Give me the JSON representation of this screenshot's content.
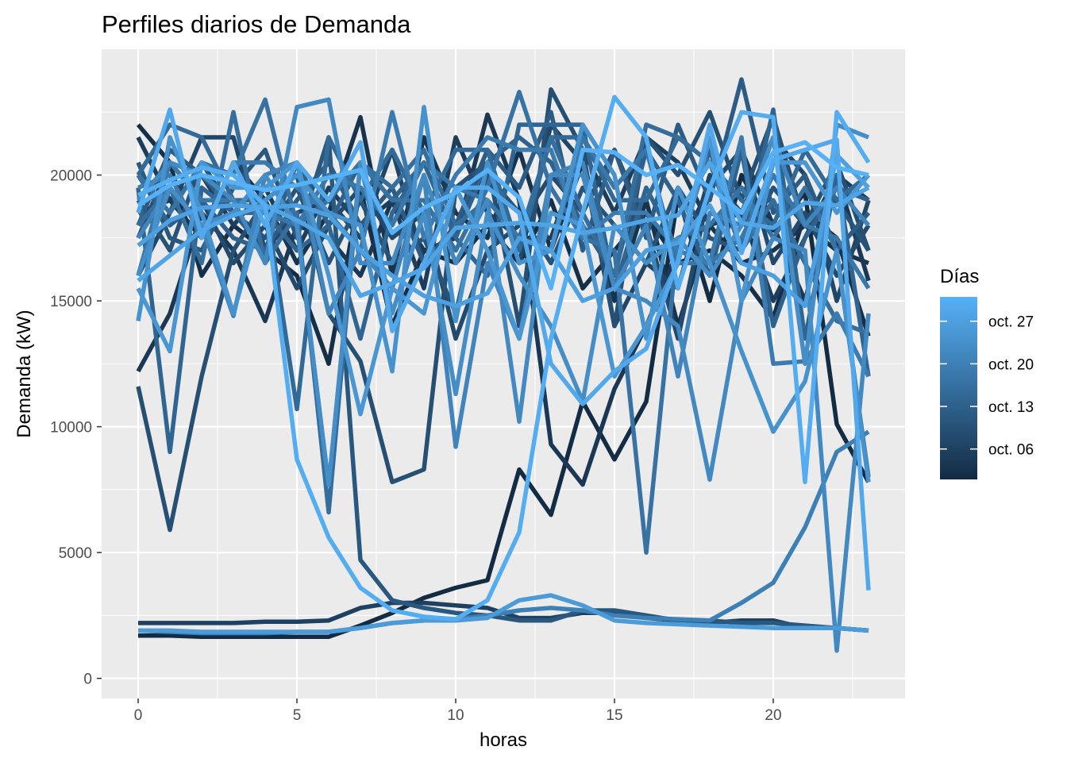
{
  "chart_data": {
    "type": "line",
    "title": "Perfiles diarios de Demanda",
    "xlabel": "horas",
    "ylabel": "Demanda (kW)",
    "xlim": [
      -1.15,
      24.15
    ],
    "ylim": [
      -800,
      25000
    ],
    "x_ticks": [
      0,
      5,
      10,
      15,
      20
    ],
    "x_tick_labels": [
      "0",
      "5",
      "10",
      "15",
      "20"
    ],
    "y_ticks": [
      0,
      5000,
      10000,
      15000,
      20000
    ],
    "y_tick_labels": [
      "0",
      "5000",
      "10000",
      "15000",
      "20000"
    ],
    "grid": true,
    "legend": {
      "title": "Días",
      "position": "right",
      "labels": [
        "oct. 27",
        "oct. 20",
        "oct. 13",
        "oct. 06"
      ],
      "label_day_index": [
        26,
        19,
        12,
        5
      ],
      "color_low": "#132b43",
      "color_high": "#56b1f7"
    },
    "x": [
      0,
      1,
      2,
      3,
      4,
      5,
      6,
      7,
      8,
      9,
      10,
      11,
      12,
      13,
      14,
      15,
      16,
      17,
      18,
      19,
      20,
      21,
      22,
      23
    ],
    "series": [
      {
        "day_index": 0,
        "values": [
          1700,
          1700,
          1650,
          1650,
          1650,
          1650,
          1650,
          2100,
          2600,
          3200,
          3600,
          3900,
          8300,
          6500,
          11000,
          8700,
          11000,
          19200,
          15000,
          20000,
          17800,
          19300,
          10100,
          7800
        ]
      },
      {
        "day_index": 1,
        "values": [
          22000,
          20500,
          16000,
          18000,
          17000,
          16000,
          12500,
          19500,
          14000,
          17000,
          16500,
          18000,
          16500,
          19000,
          15500,
          17000,
          18500,
          16500,
          17000,
          16000,
          14300,
          18500,
          17500,
          13600
        ]
      },
      {
        "day_index": 2,
        "values": [
          18500,
          19000,
          17500,
          20500,
          19000,
          16500,
          18500,
          22300,
          16000,
          21500,
          18500,
          17500,
          21000,
          17000,
          20500,
          15000,
          19000,
          14000,
          18000,
          16500,
          17000,
          18000,
          17000,
          16500
        ]
      },
      {
        "day_index": 3,
        "values": [
          12200,
          14500,
          18500,
          17000,
          14200,
          18000,
          17500,
          16000,
          19000,
          17000,
          17500,
          22400,
          19000,
          9300,
          7700,
          11500,
          14000,
          17000,
          19500,
          21000,
          18000,
          15000,
          20000,
          15800
        ]
      },
      {
        "day_index": 4,
        "values": [
          21500,
          19000,
          20000,
          18000,
          19500,
          17000,
          19500,
          18000,
          19000,
          15500,
          21500,
          18500,
          17500,
          17500,
          21000,
          18500,
          21500,
          20500,
          18000,
          18500,
          15000,
          17500,
          20000,
          19000
        ]
      },
      {
        "day_index": 5,
        "values": [
          2200,
          2200,
          2200,
          2200,
          2250,
          2250,
          2300,
          2800,
          3000,
          3000,
          2900,
          2800,
          2400,
          2400,
          2600,
          2600,
          2400,
          2300,
          2200,
          2300,
          2300,
          2000,
          2000,
          1900
        ]
      },
      {
        "day_index": 6,
        "values": [
          16000,
          18500,
          21500,
          21500,
          17000,
          18500,
          19000,
          17500,
          21000,
          16500,
          18000,
          20500,
          16500,
          22000,
          20500,
          14000,
          16500,
          15500,
          20000,
          18500,
          21500,
          20000,
          15000,
          19000
        ]
      },
      {
        "day_index": 7,
        "values": [
          17500,
          20500,
          19000,
          16500,
          18000,
          15500,
          18000,
          19500,
          17500,
          18500,
          13500,
          17000,
          18000,
          20000,
          18500,
          21000,
          18000,
          13500,
          19500,
          21000,
          16500,
          18500,
          16000,
          18000
        ]
      },
      {
        "day_index": 8,
        "values": [
          11600,
          5900,
          12000,
          17000,
          19000,
          20000,
          14500,
          12600,
          7800,
          8300,
          19500,
          20500,
          14000,
          23400,
          21000,
          14000,
          21500,
          20000,
          22500,
          19000,
          22300,
          18000,
          20500,
          17000
        ]
      },
      {
        "day_index": 9,
        "values": [
          19000,
          17000,
          20500,
          18500,
          17500,
          19500,
          16500,
          19000,
          16500,
          17500,
          14500,
          20000,
          18500,
          16500,
          19500,
          18000,
          16500,
          19500,
          17500,
          17000,
          19500,
          18000,
          19000,
          17000
        ]
      },
      {
        "day_index": 10,
        "values": [
          20500,
          17500,
          17000,
          19500,
          21000,
          17500,
          21500,
          4700,
          3100,
          2800,
          2600,
          2500,
          2300,
          2300,
          2700,
          2700,
          2500,
          2300,
          2300,
          2200,
          2200,
          2100,
          2000,
          1900
        ]
      },
      {
        "day_index": 11,
        "values": [
          18000,
          21000,
          20000,
          18500,
          17000,
          19000,
          20500,
          18000,
          19500,
          16500,
          18000,
          21000,
          19500,
          22500,
          17000,
          21000,
          17500,
          22000,
          19000,
          23800,
          18500,
          20000,
          17000,
          18500
        ]
      },
      {
        "day_index": 12,
        "values": [
          20000,
          18000,
          19000,
          17500,
          17000,
          20500,
          18000,
          20500,
          19000,
          20500,
          17500,
          20500,
          21500,
          20500,
          18000,
          16000,
          21000,
          19000,
          16000,
          21000,
          14000,
          17500,
          19500,
          19000
        ]
      },
      {
        "day_index": 13,
        "values": [
          19500,
          9000,
          19500,
          18500,
          18500,
          17000,
          18000,
          13500,
          18500,
          20500,
          17500,
          16000,
          22000,
          22000,
          22000,
          15500,
          19500,
          17000,
          21000,
          17000,
          22600,
          13500,
          20000,
          12000
        ]
      },
      {
        "day_index": 14,
        "values": [
          20000,
          22000,
          21500,
          19000,
          19000,
          10700,
          21500,
          19000,
          21000,
          18500,
          21000,
          21000,
          17000,
          21500,
          21500,
          19000,
          19000,
          21500,
          20500,
          19000,
          18000,
          21000,
          19000,
          20000
        ]
      },
      {
        "day_index": 15,
        "values": [
          18000,
          19500,
          16500,
          22500,
          16500,
          18500,
          6600,
          20500,
          19500,
          21000,
          18000,
          19000,
          17500,
          21500,
          18500,
          16000,
          22000,
          21500,
          20500,
          17000,
          19000,
          16500,
          14200,
          13700
        ]
      },
      {
        "day_index": 16,
        "values": [
          20000,
          18500,
          20500,
          20000,
          23000,
          18000,
          19000,
          20500,
          19000,
          19000,
          17000,
          19500,
          23300,
          19500,
          17500,
          17000,
          5000,
          17500,
          18000,
          19500,
          17500,
          19500,
          17000,
          8000
        ]
      },
      {
        "day_index": 17,
        "values": [
          16000,
          20500,
          19000,
          19000,
          18500,
          18000,
          20000,
          19500,
          18000,
          20500,
          19500,
          19000,
          17500,
          17000,
          21500,
          19500,
          21000,
          16500,
          16500,
          17500,
          20000,
          18000,
          17500,
          15500
        ]
      },
      {
        "day_index": 18,
        "values": [
          19500,
          20000,
          17500,
          20500,
          20500,
          19500,
          18500,
          17000,
          22500,
          17500,
          20000,
          21500,
          21000,
          21000,
          17500,
          18500,
          18500,
          17000,
          16500,
          21500,
          12500,
          12600,
          14500,
          12000
        ]
      },
      {
        "day_index": 19,
        "values": [
          1900,
          1850,
          1800,
          1800,
          1800,
          1850,
          1850,
          2000,
          2200,
          2300,
          2350,
          2500,
          2700,
          2800,
          2700,
          2500,
          2400,
          2350,
          2300,
          3000,
          3800,
          6000,
          9000,
          9800
        ]
      },
      {
        "day_index": 20,
        "values": [
          17500,
          19500,
          18000,
          14400,
          20000,
          20500,
          14500,
          17000,
          15500,
          20000,
          9200,
          16500,
          13500,
          20000,
          20500,
          15500,
          18000,
          12000,
          18500,
          18000,
          21500,
          18000,
          19500,
          18000
        ]
      },
      {
        "day_index": 21,
        "values": [
          19000,
          20500,
          20000,
          19000,
          16500,
          22700,
          23000,
          16500,
          16500,
          20000,
          16500,
          19000,
          10200,
          20000,
          20000,
          15500,
          15000,
          14000,
          7900,
          15000,
          17500,
          17000,
          1100,
          14500
        ]
      },
      {
        "day_index": 22,
        "values": [
          16000,
          19500,
          18000,
          18500,
          20000,
          18000,
          7700,
          20500,
          14500,
          18500,
          11300,
          18500,
          16000,
          14000,
          11000,
          18000,
          16500,
          17500,
          16000,
          18000,
          21500,
          12500,
          22000,
          21500
        ]
      },
      {
        "day_index": 23,
        "values": [
          14200,
          21500,
          18500,
          14500,
          19000,
          20000,
          18500,
          18000,
          12200,
          22700,
          14200,
          20500,
          16500,
          17000,
          22000,
          20000,
          13500,
          19500,
          16500,
          13000,
          9800,
          11800,
          17000,
          7800
        ]
      },
      {
        "day_index": 24,
        "values": [
          15500,
          13000,
          20500,
          19500,
          19500,
          20500,
          16000,
          10500,
          15500,
          14500,
          19500,
          17000,
          13500,
          18500,
          18000,
          12000,
          14000,
          16500,
          21500,
          15000,
          20500,
          20500,
          18500,
          20000
        ]
      },
      {
        "day_index": 25,
        "values": [
          1900,
          1900,
          1850,
          1850,
          1850,
          1850,
          1850,
          2000,
          2200,
          2300,
          2300,
          2400,
          3100,
          3300,
          2900,
          2300,
          2200,
          2150,
          2100,
          2050,
          2000,
          2000,
          2000,
          1900
        ]
      },
      {
        "day_index": 26,
        "values": [
          17200,
          18200,
          18700,
          18800,
          18700,
          18800,
          18400,
          17000,
          16000,
          15200,
          14800,
          15300,
          17500,
          17000,
          15000,
          15500,
          17000,
          17300,
          18800,
          16500,
          16000,
          14800,
          20800,
          19500
        ]
      },
      {
        "day_index": 27,
        "values": [
          15800,
          16800,
          17800,
          18400,
          18800,
          18200,
          17500,
          15200,
          15700,
          16300,
          17900,
          18000,
          18100,
          18000,
          17700,
          17900,
          18200,
          18400,
          20500,
          18100,
          17900,
          18900,
          18800,
          19500
        ]
      },
      {
        "day_index": 28,
        "values": [
          18500,
          22600,
          17500,
          20500,
          18000,
          20500,
          19000,
          21300,
          13800,
          16500,
          19500,
          19500,
          18500,
          12500,
          10900,
          12200,
          13100,
          16600,
          22000,
          16900,
          20600,
          21000,
          21400,
          3500
        ]
      },
      {
        "day_index": 29,
        "values": [
          19200,
          19800,
          20300,
          20000,
          18800,
          8700,
          5600,
          3600,
          2700,
          2450,
          2350,
          3100,
          5800,
          13500,
          18500,
          23100,
          21500,
          15500,
          19500,
          22500,
          22300,
          7800,
          22500,
          20500
        ]
      },
      {
        "day_index": 30,
        "values": [
          18800,
          19600,
          20000,
          19700,
          19400,
          19600,
          19900,
          20200,
          17700,
          18700,
          19300,
          20200,
          19100,
          15500,
          21000,
          20900,
          20000,
          20400,
          19500,
          18500,
          20900,
          21300,
          20300,
          20000
        ]
      }
    ]
  }
}
